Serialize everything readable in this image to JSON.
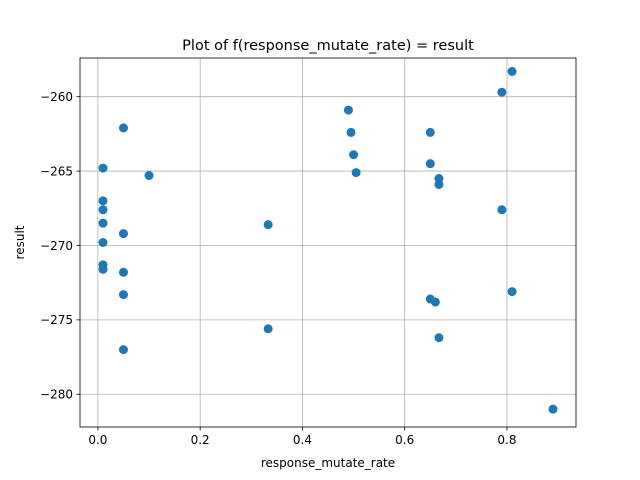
{
  "chart_data": {
    "type": "scatter",
    "title": "Plot of f(response_mutate_rate) = result",
    "xlabel": "response_mutate_rate",
    "ylabel": "result",
    "xlim": [
      -0.035,
      0.935
    ],
    "ylim": [
      -282.2,
      -257.4
    ],
    "xticks": [
      0.0,
      0.2,
      0.4,
      0.6,
      0.8
    ],
    "xtick_labels": [
      "0.0",
      "0.2",
      "0.4",
      "0.6",
      "0.8"
    ],
    "yticks": [
      -260,
      -265,
      -270,
      -275,
      -280
    ],
    "ytick_labels": [
      "−260",
      "−265",
      "−270",
      "−275",
      "−280"
    ],
    "grid": true,
    "marker_color": "#1f77b4",
    "points": [
      {
        "x": 0.01,
        "y": -264.8
      },
      {
        "x": 0.01,
        "y": -267.0
      },
      {
        "x": 0.01,
        "y": -267.6
      },
      {
        "x": 0.01,
        "y": -268.5
      },
      {
        "x": 0.01,
        "y": -269.8
      },
      {
        "x": 0.01,
        "y": -271.3
      },
      {
        "x": 0.01,
        "y": -271.6
      },
      {
        "x": 0.05,
        "y": -262.1
      },
      {
        "x": 0.05,
        "y": -269.2
      },
      {
        "x": 0.05,
        "y": -271.8
      },
      {
        "x": 0.05,
        "y": -273.3
      },
      {
        "x": 0.05,
        "y": -277.0
      },
      {
        "x": 0.1,
        "y": -265.3
      },
      {
        "x": 0.333,
        "y": -268.6
      },
      {
        "x": 0.333,
        "y": -275.6
      },
      {
        "x": 0.49,
        "y": -260.9
      },
      {
        "x": 0.495,
        "y": -262.4
      },
      {
        "x": 0.5,
        "y": -263.9
      },
      {
        "x": 0.505,
        "y": -265.1
      },
      {
        "x": 0.65,
        "y": -262.4
      },
      {
        "x": 0.65,
        "y": -264.5
      },
      {
        "x": 0.65,
        "y": -273.6
      },
      {
        "x": 0.66,
        "y": -273.8
      },
      {
        "x": 0.667,
        "y": -265.5
      },
      {
        "x": 0.667,
        "y": -265.9
      },
      {
        "x": 0.667,
        "y": -276.2
      },
      {
        "x": 0.79,
        "y": -259.7
      },
      {
        "x": 0.79,
        "y": -267.6
      },
      {
        "x": 0.81,
        "y": -258.3
      },
      {
        "x": 0.81,
        "y": -273.1
      },
      {
        "x": 0.89,
        "y": -281.0
      }
    ]
  }
}
